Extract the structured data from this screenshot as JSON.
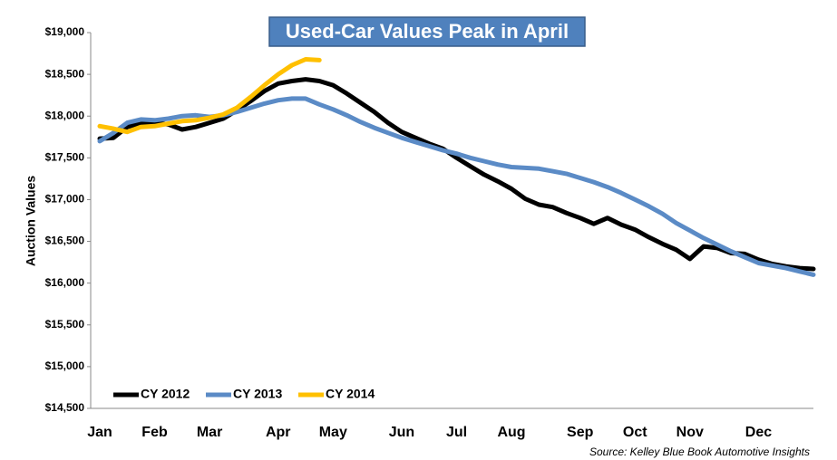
{
  "chart_data": {
    "type": "line",
    "title": "Used-Car Values Peak in April",
    "ylabel": "Auction Values",
    "source": "Source: Kelley Blue Book Automotive Insights",
    "categories": [
      "Jan",
      null,
      null,
      null,
      "Feb",
      null,
      null,
      null,
      "Mar",
      null,
      null,
      null,
      null,
      "Apr",
      null,
      null,
      null,
      "May",
      null,
      null,
      null,
      null,
      "Jun",
      null,
      null,
      null,
      "Jul",
      null,
      null,
      null,
      "Aug",
      null,
      null,
      null,
      null,
      "Sep",
      null,
      null,
      null,
      "Oct",
      null,
      null,
      null,
      "Nov",
      null,
      null,
      null,
      null,
      "Dec",
      null,
      null,
      null,
      null
    ],
    "series": [
      {
        "name": "CY 2012",
        "color": "#000000",
        "values": [
          17730,
          17740,
          17870,
          17920,
          17920,
          17900,
          17840,
          17870,
          17920,
          17970,
          18070,
          18180,
          18300,
          18390,
          18420,
          18440,
          18420,
          18370,
          18270,
          18160,
          18050,
          17920,
          17810,
          17740,
          17670,
          17610,
          17500,
          17400,
          17300,
          17220,
          17130,
          17010,
          16940,
          16910,
          16840,
          16780,
          16710,
          16780,
          16700,
          16640,
          16550,
          16470,
          16400,
          16290,
          16440,
          16420,
          16360,
          16350,
          16280,
          16230,
          16200,
          16180,
          16170
        ]
      },
      {
        "name": "CY 2013",
        "color": "#5b8bc6",
        "values": [
          17700,
          17800,
          17920,
          17960,
          17950,
          17970,
          18000,
          18010,
          17990,
          18010,
          18050,
          18100,
          18150,
          18190,
          18210,
          18210,
          18140,
          18080,
          18010,
          17930,
          17860,
          17800,
          17740,
          17690,
          17640,
          17590,
          17550,
          17500,
          17460,
          17420,
          17390,
          17380,
          17370,
          17340,
          17310,
          17260,
          17210,
          17150,
          17080,
          17000,
          16920,
          16830,
          16720,
          16630,
          16540,
          16460,
          16380,
          16310,
          16240,
          16210,
          16180,
          16140,
          16100
        ]
      },
      {
        "name": "CY 2014",
        "color": "#ffc000",
        "values": [
          17880,
          17850,
          17810,
          17870,
          17880,
          17910,
          17940,
          17950,
          17980,
          18020,
          18100,
          18230,
          18370,
          18500,
          18610,
          18680,
          18670,
          null,
          null,
          null,
          null,
          null,
          null,
          null,
          null,
          null,
          null,
          null,
          null,
          null,
          null,
          null,
          null,
          null,
          null,
          null,
          null,
          null,
          null,
          null,
          null,
          null,
          null,
          null,
          null,
          null,
          null,
          null,
          null,
          null,
          null,
          null,
          null
        ]
      }
    ],
    "ylim": [
      14500,
      19000
    ],
    "yticks": [
      {
        "value": 14500,
        "label": "$14,500"
      },
      {
        "value": 15000,
        "label": "$15,000"
      },
      {
        "value": 15500,
        "label": "$15,500"
      },
      {
        "value": 16000,
        "label": "$16,000"
      },
      {
        "value": 16500,
        "label": "$16,500"
      },
      {
        "value": 17000,
        "label": "$17,000"
      },
      {
        "value": 17500,
        "label": "$17,500"
      },
      {
        "value": 18000,
        "label": "$18,000"
      },
      {
        "value": 18500,
        "label": "$18,500"
      },
      {
        "value": 19000,
        "label": "$19,000"
      }
    ],
    "grid": false,
    "legend": "lower left"
  }
}
